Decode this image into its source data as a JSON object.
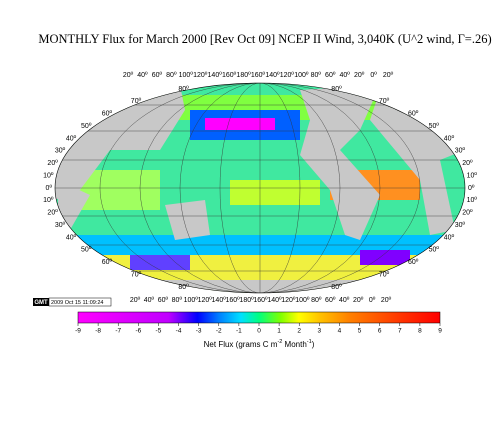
{
  "title": "MONTHLY Flux for March 2000 [Rev Oct 09] NCEP II Wind, 3,040K (U^2 wind, Γ=.26)",
  "map": {
    "top_lon_labels": [
      "20º",
      "40º",
      "60º",
      "80º",
      "100º",
      "120º",
      "140º",
      "160º",
      "180º",
      "160º",
      "140º",
      "120º",
      "100º",
      "80º",
      "60º",
      "40º",
      "20º",
      "0º",
      "20º"
    ],
    "bottom_lon_labels": [
      "20º",
      "40º",
      "60º",
      "80º",
      "100º",
      "120º",
      "140º",
      "160º",
      "180º",
      "160º",
      "140º",
      "120º",
      "100º",
      "80º",
      "60º",
      "40º",
      "20º",
      "0º",
      "20º"
    ],
    "left_lat_labels": [
      "80º",
      "70º",
      "60º",
      "50º",
      "40º",
      "30º",
      "20º",
      "10º",
      "0º",
      "10º",
      "20º",
      "30º",
      "40º",
      "50º",
      "60º",
      "70º",
      "80º"
    ],
    "right_lat_labels": [
      "80º",
      "70º",
      "60º",
      "50º",
      "40º",
      "30º",
      "20º",
      "10º",
      "0º",
      "10º",
      "20º",
      "30º",
      "40º",
      "50º",
      "60º",
      "70º",
      "80º"
    ]
  },
  "stamp": {
    "logo": "GMT",
    "text": "2009 Oct 15 11:09:24"
  },
  "colorbar": {
    "range": [
      -9,
      9
    ],
    "ticks": [
      -9,
      -8,
      -7,
      -6,
      -5,
      -4,
      -3,
      -2,
      -1,
      0,
      1,
      2,
      3,
      4,
      5,
      6,
      7,
      8,
      9
    ],
    "label": [
      "Net Flux (grams C m",
      "-2",
      " Month",
      "-1",
      ")"
    ]
  }
}
